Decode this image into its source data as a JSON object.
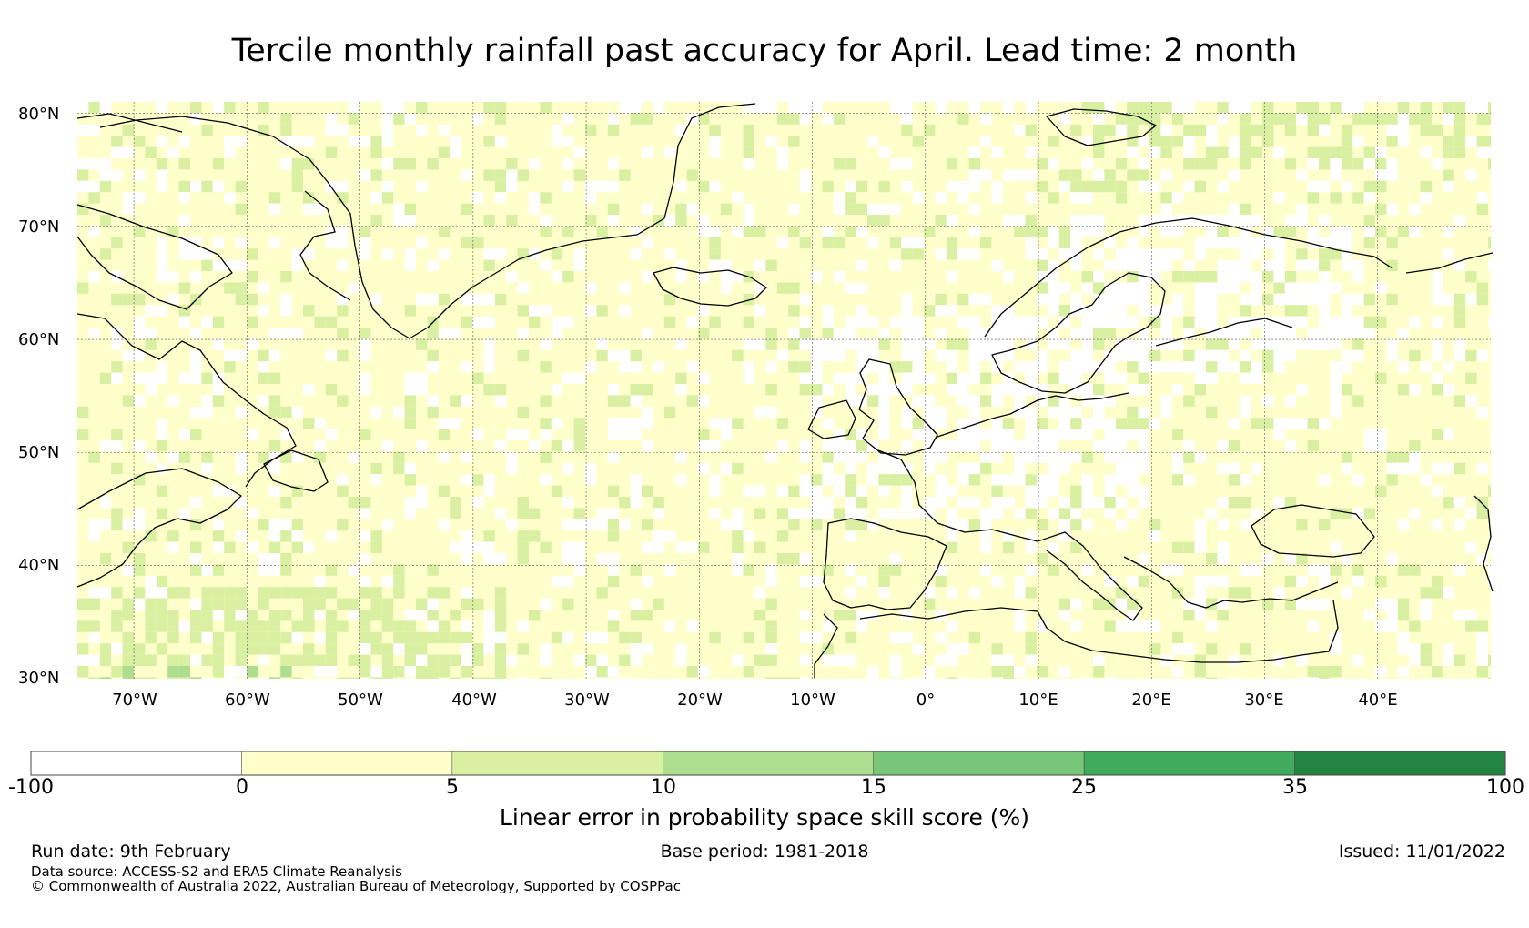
{
  "title": "Tercile monthly rainfall past accuracy for April. Lead time: 2 month",
  "map": {
    "lat_labels": [
      "80°N",
      "70°N",
      "60°N",
      "50°N",
      "40°N",
      "30°N"
    ],
    "lon_labels": [
      "70°W",
      "60°W",
      "50°W",
      "40°W",
      "30°W",
      "20°W",
      "10°W",
      "0°",
      "10°E",
      "20°E",
      "30°E",
      "40°E"
    ],
    "extent": {
      "lon": [
        -75,
        50
      ],
      "lat": [
        30,
        81
      ]
    }
  },
  "colorbar": {
    "ticks": [
      "-100",
      "0",
      "5",
      "10",
      "15",
      "25",
      "35",
      "100"
    ],
    "colors": [
      "#ffffff",
      "#ffffcc",
      "#d9f0a3",
      "#addd8e",
      "#78c679",
      "#41ab5d",
      "#238443"
    ],
    "label": "Linear error in probability space skill score (%)"
  },
  "footer": {
    "run_date": "Run date: 9th February",
    "base_period": "Base period: 1981-2018",
    "issued": "Issued: 11/01/2022",
    "data_source": "Data source: ACCESS-S2 and ERA5 Climate Reanalysis",
    "copyright": "© Commonwealth of Australia 2022, Australian Bureau of Meteorology, Supported by COSPPac"
  }
}
